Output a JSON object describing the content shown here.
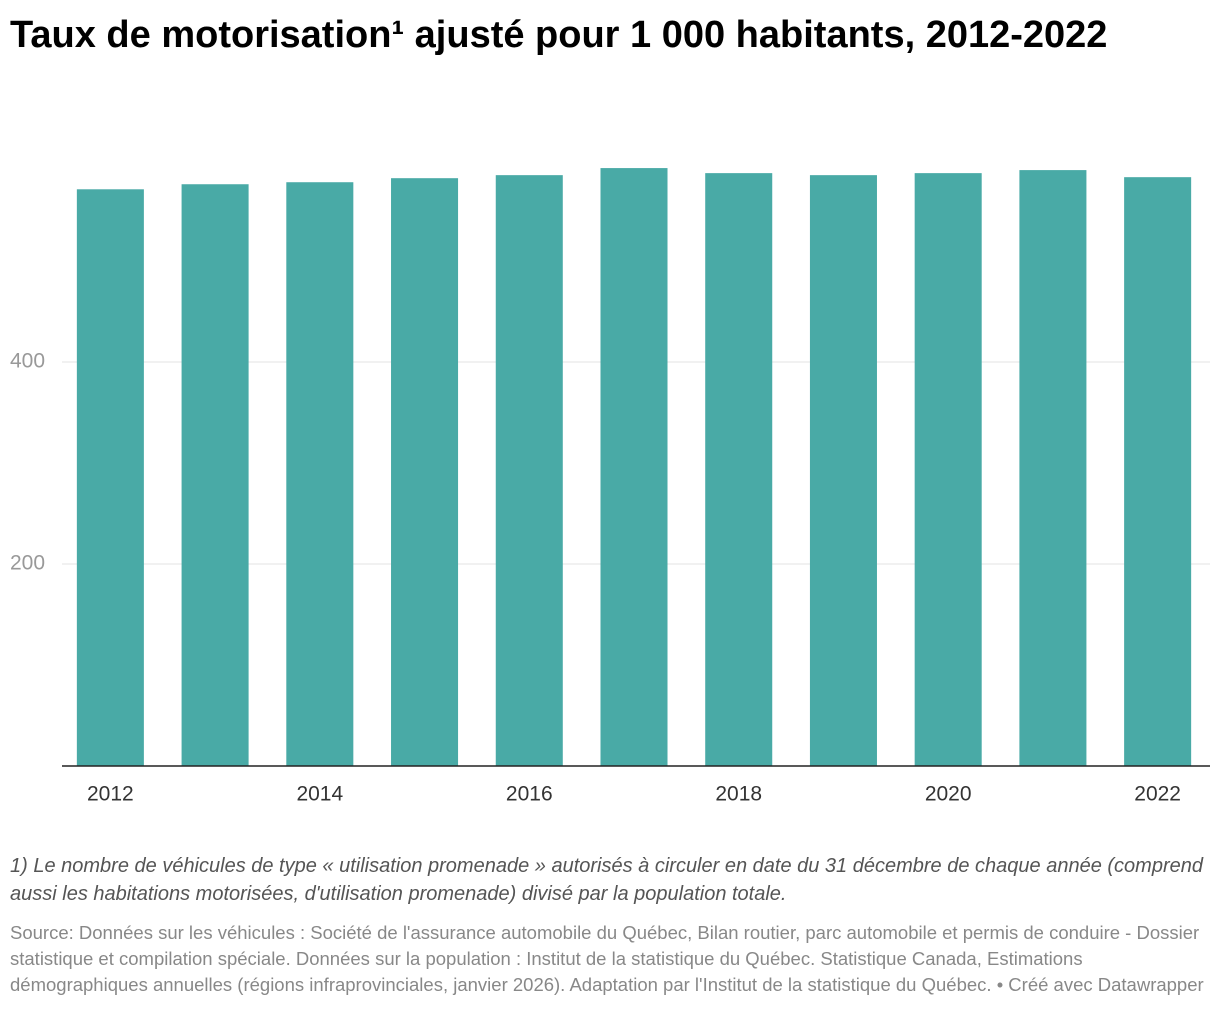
{
  "chart_data": {
    "type": "bar",
    "title": "Taux de motorisation¹ ajusté pour 1 000 habitants, 2012-2022",
    "categories": [
      "2012",
      null,
      "2014",
      null,
      "2016",
      null,
      "2018",
      null,
      "2020",
      null,
      "2022"
    ],
    "values": [
      571,
      576,
      578,
      582,
      585,
      592,
      587,
      585,
      587,
      590,
      583
    ],
    "color": "#49aaa6",
    "ylim": [
      0,
      600
    ],
    "yticks": [
      200,
      400
    ],
    "grid": true,
    "note": "1) Le nombre de véhicules de type « utilisation promenade » autorisés à circuler en date du 31 décembre de chaque année (comprend aussi les habitations motorisées, d'utilisation promenade) divisé par la population totale.",
    "source": "Source: Données sur les véhicules : Société de l'assurance automobile du Québec, Bilan routier, parc automobile et permis de conduire - Dossier statistique et compilation spéciale. Données sur la population : Institut de la statistique du Québec. Statistique Canada, Estimations démographiques annuelles (régions infraprovinciales, janvier 2026). Adaptation par l'Institut de la statistique du Québec. • Créé avec Datawrapper"
  }
}
